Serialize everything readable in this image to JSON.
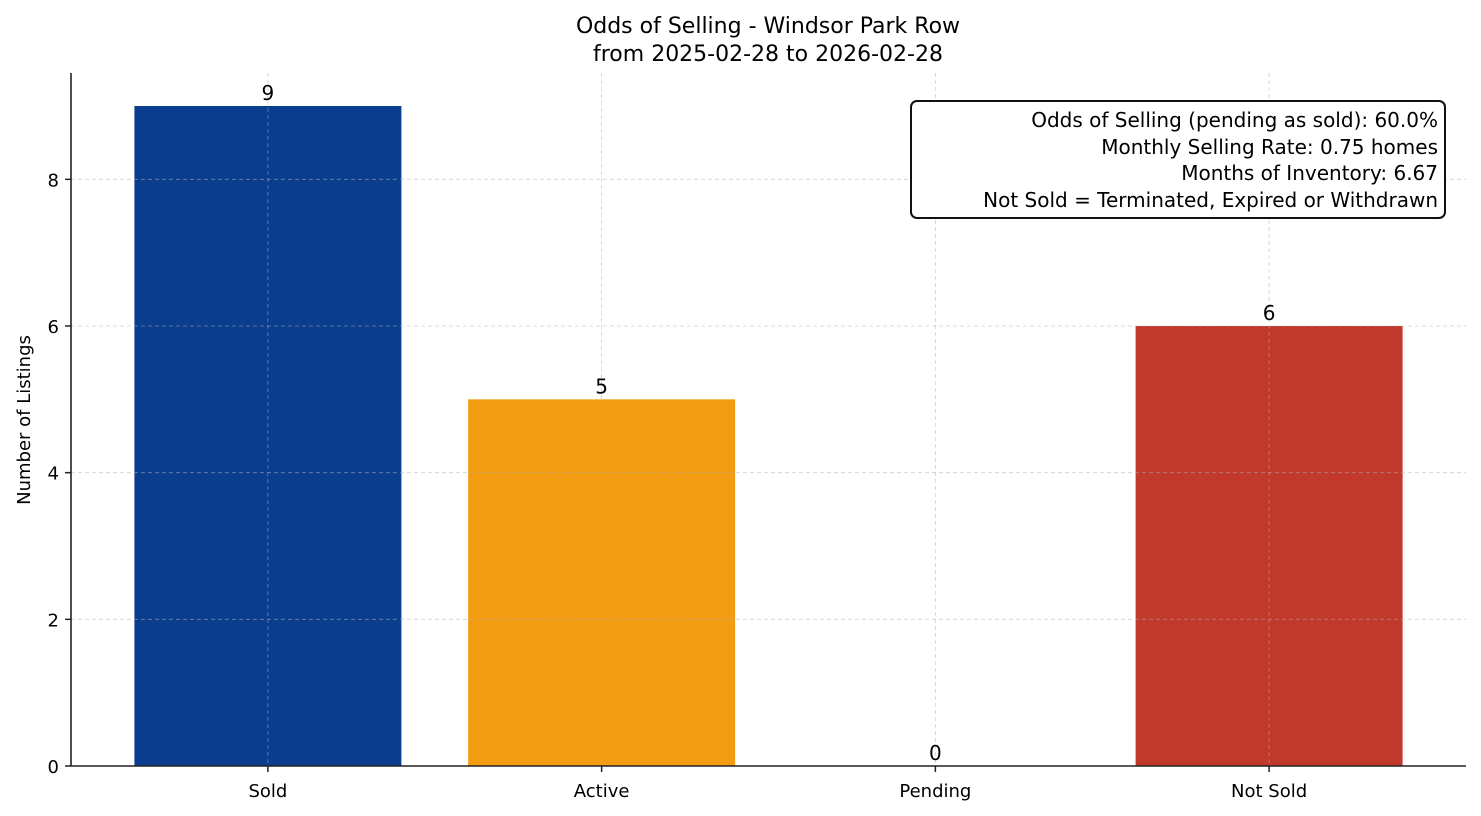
{
  "chart_data": {
    "type": "bar",
    "title": "Odds of Selling - Windsor Park Row",
    "subtitle": "from 2025-02-28 to 2026-02-28",
    "xlabel": "",
    "ylabel": "Number of Listings",
    "categories": [
      "Sold",
      "Active",
      "Pending",
      "Not Sold"
    ],
    "values": [
      9,
      5,
      0,
      6
    ],
    "colors": [
      "#0b3d8f",
      "#f39c12",
      "#8e44ad",
      "#c0392b"
    ],
    "ylim": [
      0,
      9.45
    ],
    "yticks": [
      0,
      2,
      4,
      6,
      8
    ],
    "grid": true,
    "annotation_box": [
      "Odds of Selling (pending as sold): 60.0%",
      "Monthly Selling Rate: 0.75 homes",
      "Months of Inventory: 6.67",
      "Not Sold = Terminated, Expired or Withdrawn"
    ]
  }
}
